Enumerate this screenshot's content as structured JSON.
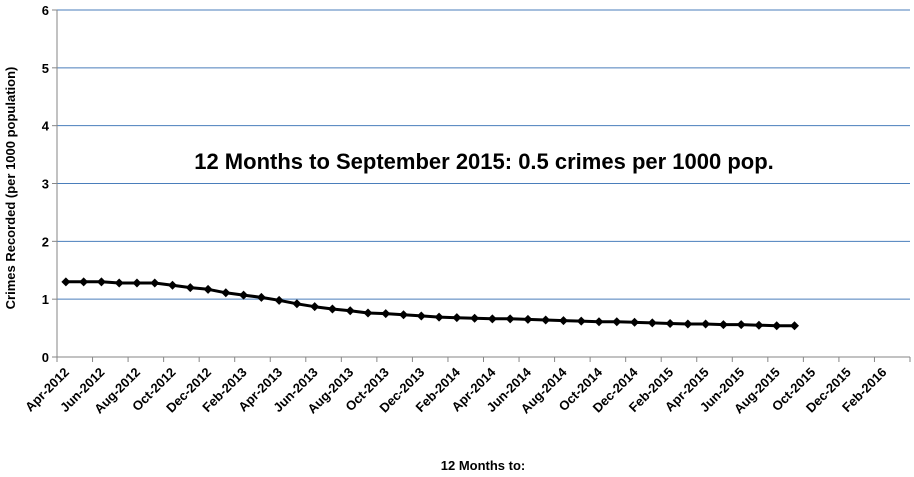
{
  "chart_data": {
    "type": "line",
    "annotation": "12 Months to September 2015: 0.5 crimes per 1000 pop.",
    "xlabel": "12 Months to:",
    "ylabel": "Crimes Recorded (per 1000 population)",
    "ylim": [
      0,
      6
    ],
    "yticks": [
      "0",
      "1",
      "2",
      "3",
      "4",
      "5",
      "6"
    ],
    "grid": "horizontal",
    "legend": "none",
    "x_tick_labels": [
      "Apr-2012",
      "Jun-2012",
      "Aug-2012",
      "Oct-2012",
      "Dec-2012",
      "Feb-2013",
      "Apr-2013",
      "Jun-2013",
      "Aug-2013",
      "Oct-2013",
      "Dec-2013",
      "Feb-2014",
      "Apr-2014",
      "Jun-2014",
      "Aug-2014",
      "Oct-2014",
      "Dec-2014",
      "Feb-2015",
      "Apr-2015",
      "Jun-2015",
      "Aug-2015",
      "Oct-2015",
      "Dec-2015",
      "Feb-2016"
    ],
    "x": [
      "Apr-2012",
      "May-2012",
      "Jun-2012",
      "Jul-2012",
      "Aug-2012",
      "Sep-2012",
      "Oct-2012",
      "Nov-2012",
      "Dec-2012",
      "Jan-2013",
      "Feb-2013",
      "Mar-2013",
      "Apr-2013",
      "May-2013",
      "Jun-2013",
      "Jul-2013",
      "Aug-2013",
      "Sep-2013",
      "Oct-2013",
      "Nov-2013",
      "Dec-2013",
      "Jan-2014",
      "Feb-2014",
      "Mar-2014",
      "Apr-2014",
      "May-2014",
      "Jun-2014",
      "Jul-2014",
      "Aug-2014",
      "Sep-2014",
      "Oct-2014",
      "Nov-2014",
      "Dec-2014",
      "Jan-2015",
      "Feb-2015",
      "Mar-2015",
      "Apr-2015",
      "May-2015",
      "Jun-2015",
      "Jul-2015",
      "Aug-2015",
      "Sep-2015"
    ],
    "series": [
      {
        "values": [
          1.3,
          1.3,
          1.3,
          1.28,
          1.28,
          1.28,
          1.24,
          1.2,
          1.17,
          1.11,
          1.07,
          1.03,
          0.98,
          0.92,
          0.87,
          0.83,
          0.8,
          0.76,
          0.75,
          0.73,
          0.71,
          0.69,
          0.68,
          0.67,
          0.66,
          0.66,
          0.65,
          0.64,
          0.63,
          0.62,
          0.61,
          0.61,
          0.6,
          0.59,
          0.58,
          0.57,
          0.57,
          0.56,
          0.56,
          0.55,
          0.54,
          0.54
        ],
        "color": "#000000"
      }
    ],
    "colors": {
      "gridline": "#4a7ebb",
      "axis": "#868686"
    }
  }
}
